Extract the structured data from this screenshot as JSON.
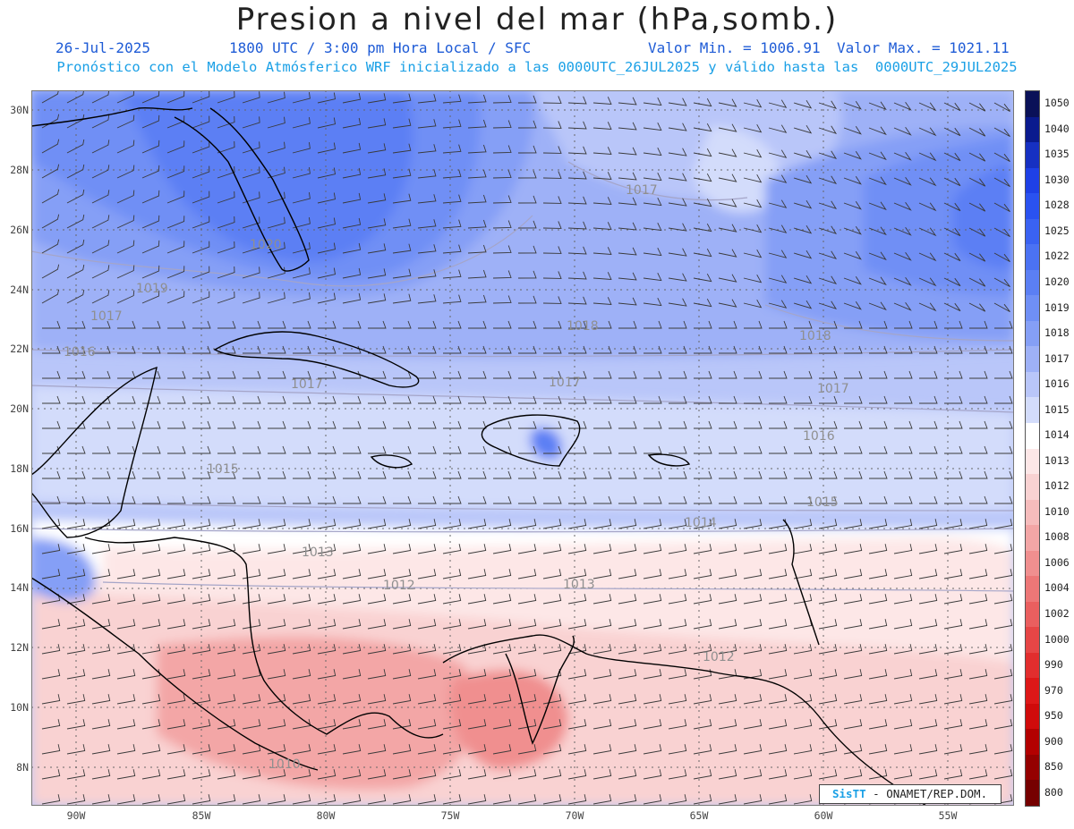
{
  "header": {
    "title": "Presion a nivel del mar (hPa,somb.)",
    "date": "26-Jul-2025",
    "time_info": "1800 UTC / 3:00 pm Hora Local / SFC",
    "min_label": "Valor Min. = 1006.91",
    "max_label": "Valor Max. = 1021.11",
    "model_info": "Pronóstico con el Modelo Atmósferico WRF inicializado a las 0000UTC_26JUL2025 y válido hasta las  0000UTC_29JUL2025"
  },
  "axes": {
    "lat_labels": [
      "30N",
      "28N",
      "26N",
      "24N",
      "22N",
      "20N",
      "18N",
      "16N",
      "14N",
      "12N",
      "10N",
      "8N"
    ],
    "lon_labels": [
      "90W",
      "85W",
      "80W",
      "75W",
      "70W",
      "65W",
      "60W",
      "55W"
    ]
  },
  "legend": {
    "levels": [
      "1050",
      "1040",
      "1035",
      "1030",
      "1028",
      "1025",
      "1022",
      "1020",
      "1019",
      "1018",
      "1017",
      "1016",
      "1015",
      "1014",
      "1013",
      "1012",
      "1010",
      "1008",
      "1006",
      "1004",
      "1002",
      "1000",
      "990",
      "970",
      "950",
      "900",
      "850",
      "800"
    ],
    "colors": [
      "#0a1158",
      "#0a1a8e",
      "#1630c2",
      "#1e40e6",
      "#2a52f0",
      "#3a62f2",
      "#4b72f3",
      "#5b7ff4",
      "#6f8ff5",
      "#859ff6",
      "#9eb1f7",
      "#b9c6f9",
      "#d3dcfb",
      "#ffffff",
      "#fde7e7",
      "#f9d2d2",
      "#f6bcbc",
      "#f3a6a6",
      "#f08f8f",
      "#ed7777",
      "#ea5f5f",
      "#e64646",
      "#e22e2e",
      "#dd1818",
      "#d00b0b",
      "#b30000",
      "#950000",
      "#760000"
    ]
  },
  "contour_labels": [
    "1020",
    "1019",
    "1018",
    "1017",
    "1016",
    "1015",
    "1014",
    "1013",
    "1012",
    "1010"
  ],
  "credit": {
    "sis": "SisTT",
    "org": " - ONAMET/REP.DOM."
  },
  "colors": {
    "title": "#222222",
    "subtitle": "#1e5bd6",
    "model_line": "#1aa0e6"
  }
}
